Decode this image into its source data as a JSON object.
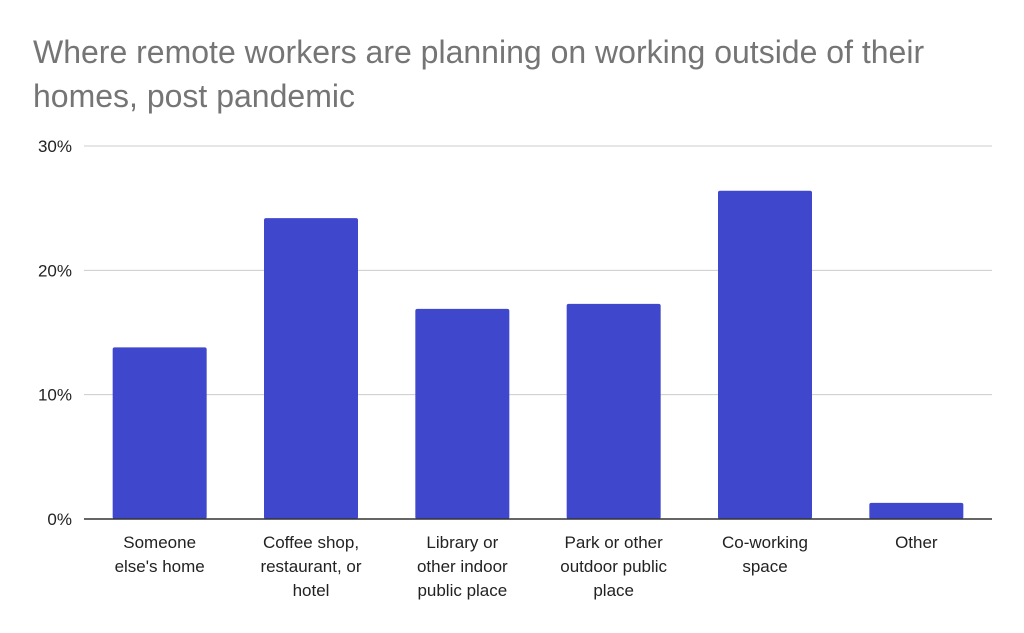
{
  "chart_data": {
    "type": "bar",
    "title": "Where remote workers are planning on working outside of their homes, post pandemic",
    "xlabel": "",
    "ylabel": "",
    "categories": [
      [
        "Someone",
        "else's home"
      ],
      [
        "Coffee shop,",
        "restaurant, or",
        "hotel"
      ],
      [
        "Library or",
        "other indoor",
        "public place"
      ],
      [
        "Park or other",
        "outdoor public",
        "place"
      ],
      [
        "Co-working",
        "space"
      ],
      [
        "Other"
      ]
    ],
    "values": [
      13.8,
      24.2,
      16.9,
      17.3,
      26.4,
      1.3
    ],
    "ylim": [
      0,
      30
    ],
    "yticks": [
      0,
      10,
      20,
      30
    ],
    "ytick_labels": [
      "0%",
      "10%",
      "20%",
      "30%"
    ],
    "grid": true,
    "legend": "none",
    "bar_color": "#3f48cc",
    "grid_color": "#cccccc",
    "axis_color": "#333333"
  }
}
